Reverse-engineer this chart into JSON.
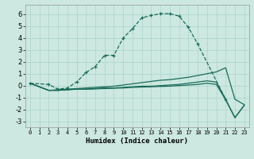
{
  "xlabel": "Humidex (Indice chaleur)",
  "bg_color": "#cce8e0",
  "line_color": "#1a6b5a",
  "grid_color": "#aad4cc",
  "xlim": [
    -0.5,
    23.5
  ],
  "ylim": [
    -3.5,
    6.8
  ],
  "xticks": [
    0,
    1,
    2,
    3,
    4,
    5,
    6,
    7,
    8,
    9,
    10,
    11,
    12,
    13,
    14,
    15,
    16,
    17,
    18,
    19,
    20,
    21,
    22,
    23
  ],
  "yticks": [
    -3,
    -2,
    -1,
    0,
    1,
    2,
    3,
    4,
    5,
    6
  ],
  "series": [
    {
      "x": [
        0,
        2,
        3,
        4,
        5,
        6,
        7,
        8,
        9,
        10,
        11,
        12,
        13,
        14,
        15,
        16,
        17,
        18,
        21
      ],
      "y": [
        0.2,
        0.1,
        -0.3,
        -0.2,
        0.3,
        1.1,
        1.6,
        2.55,
        2.55,
        4.0,
        4.8,
        5.7,
        5.9,
        6.05,
        6.05,
        5.85,
        4.9,
        3.5,
        -1.15
      ],
      "marker": "+",
      "linestyle": "--"
    },
    {
      "x": [
        0,
        2,
        3,
        4,
        5,
        6,
        7,
        8,
        9,
        10,
        11,
        12,
        13,
        14,
        15,
        16,
        17,
        18,
        19,
        20,
        21,
        22,
        23
      ],
      "y": [
        0.2,
        -0.4,
        -0.35,
        -0.3,
        -0.25,
        -0.2,
        -0.15,
        -0.1,
        -0.05,
        0.05,
        0.15,
        0.25,
        0.35,
        0.45,
        0.5,
        0.6,
        0.7,
        0.85,
        1.0,
        1.15,
        1.5,
        -1.15,
        -1.6
      ],
      "marker": null,
      "linestyle": "-"
    },
    {
      "x": [
        0,
        2,
        3,
        4,
        5,
        6,
        7,
        8,
        9,
        10,
        11,
        12,
        13,
        14,
        15,
        16,
        17,
        18,
        19,
        20,
        21,
        22,
        23
      ],
      "y": [
        0.2,
        -0.4,
        -0.4,
        -0.35,
        -0.3,
        -0.3,
        -0.25,
        -0.2,
        -0.2,
        -0.15,
        -0.1,
        -0.05,
        -0.05,
        0.0,
        0.05,
        0.1,
        0.2,
        0.3,
        0.4,
        0.3,
        -1.15,
        -2.7,
        -1.65
      ],
      "marker": null,
      "linestyle": "-"
    },
    {
      "x": [
        0,
        2,
        3,
        4,
        5,
        6,
        7,
        8,
        9,
        10,
        11,
        12,
        13,
        14,
        15,
        16,
        17,
        18,
        19,
        20,
        21,
        22,
        23
      ],
      "y": [
        0.2,
        -0.4,
        -0.4,
        -0.35,
        -0.3,
        -0.3,
        -0.28,
        -0.25,
        -0.22,
        -0.2,
        -0.15,
        -0.12,
        -0.1,
        -0.07,
        -0.05,
        0.0,
        0.05,
        0.1,
        0.2,
        0.1,
        -1.2,
        -2.7,
        -1.65
      ],
      "marker": null,
      "linestyle": "-"
    }
  ]
}
